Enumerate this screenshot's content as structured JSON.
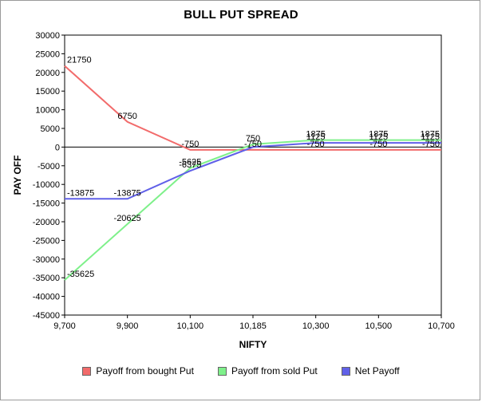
{
  "chart_data": {
    "type": "line",
    "title": "BULL PUT SPREAD",
    "xlabel": "NIFTY",
    "ylabel": "PAY OFF",
    "categories": [
      "9,700",
      "9,900",
      "10,100",
      "10,185",
      "10,300",
      "10,500",
      "10,700"
    ],
    "ylim": [
      -45000,
      30000
    ],
    "yticks": [
      30000,
      25000,
      20000,
      15000,
      10000,
      5000,
      0,
      -5000,
      -10000,
      -15000,
      -20000,
      -25000,
      -30000,
      -35000,
      -40000,
      -45000
    ],
    "grid": false,
    "legend_position": "bottom",
    "series": [
      {
        "name": "Payoff from bought Put",
        "color": "#f26b6b",
        "values": [
          21750,
          6750,
          -750,
          -750,
          -750,
          -750,
          -750
        ],
        "labels": [
          "21750",
          "6750",
          "-750",
          "-750",
          "-750",
          "-750",
          "-750"
        ]
      },
      {
        "name": "Payoff from sold Put",
        "color": "#7ef08a",
        "values": [
          -35625,
          -20625,
          -5625,
          750,
          1875,
          1875,
          1875
        ],
        "labels": [
          "-35625",
          "-20625",
          "-5625",
          "750",
          "1875",
          "1875",
          "1875"
        ]
      },
      {
        "name": "Net Payoff",
        "color": "#6060e8",
        "values": [
          -13875,
          -13875,
          -6375,
          0,
          1125,
          1125,
          1125
        ],
        "labels": [
          "-13875",
          "-13875",
          "-6375",
          "",
          "1125",
          "1125",
          "1125"
        ]
      }
    ]
  }
}
